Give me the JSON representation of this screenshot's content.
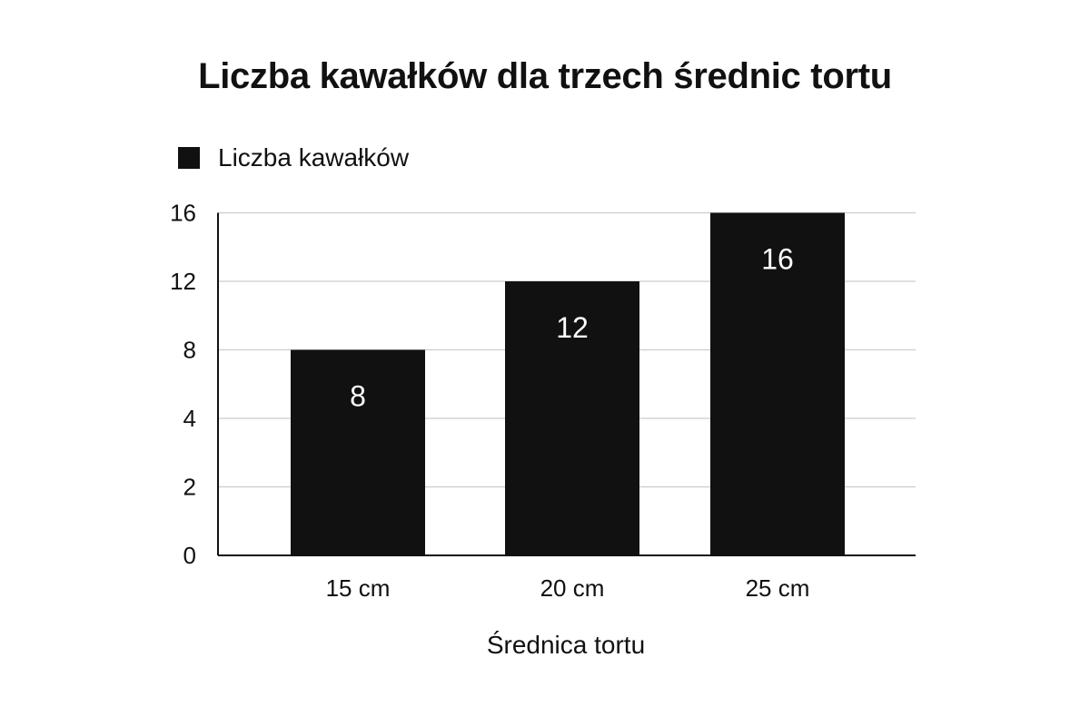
{
  "chart_data": {
    "type": "bar",
    "title": "Liczba kawałków dla trzech średnic tortu",
    "xlabel": "Średnica tortu",
    "ylabel": "",
    "categories": [
      "15 cm",
      "20 cm",
      "25 cm"
    ],
    "series": [
      {
        "name": "Liczba kawałków",
        "values": [
          8,
          12,
          16
        ],
        "color": "#111111"
      }
    ],
    "data_labels": [
      "8",
      "12",
      "16"
    ],
    "y_ticks": [
      0,
      2,
      4,
      8,
      12,
      16
    ],
    "y_tick_labels": [
      "0",
      "2",
      "4",
      "8",
      "12",
      "16"
    ],
    "grid": true,
    "legend_position": "top-left"
  }
}
